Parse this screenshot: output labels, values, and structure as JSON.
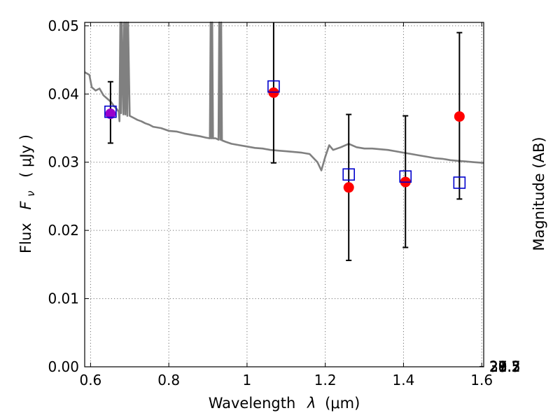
{
  "chart_data": {
    "type": "scatter",
    "xlabel_prefix": "Wavelength",
    "xlabel_symbol": "λ",
    "xlabel_unit": "(μm)",
    "ylabel_prefix": "Flux",
    "ylabel_symbol": "F",
    "ylabel_subscript": "ν",
    "ylabel_unit": "( μJy )",
    "y2label": "Magnitude (AB)",
    "xlim": [
      0.585,
      1.605
    ],
    "ylim": [
      0.0,
      0.0505
    ],
    "x_ticks": [
      {
        "value": 0.6,
        "label": "0.6"
      },
      {
        "value": 0.8,
        "label": "0.8"
      },
      {
        "value": 1.0,
        "label": "1"
      },
      {
        "value": 1.2,
        "label": "1.2"
      },
      {
        "value": 1.4,
        "label": "1.4"
      },
      {
        "value": 1.6,
        "label": "1.6"
      }
    ],
    "y_ticks": [
      {
        "value": 0.0,
        "label": "0.00"
      },
      {
        "value": 0.01,
        "label": "0.01"
      },
      {
        "value": 0.02,
        "label": "0.02"
      },
      {
        "value": 0.03,
        "label": "0.03"
      },
      {
        "value": 0.04,
        "label": "0.04"
      },
      {
        "value": 0.05,
        "label": "0.05"
      }
    ],
    "mag_ticks": [
      {
        "value": 27.2,
        "label": "27.2"
      },
      {
        "value": 27.3,
        "label": "27.3"
      },
      {
        "value": 27.5,
        "label": "27.5"
      },
      {
        "value": 27.7,
        "label": "27.7"
      },
      {
        "value": 28.0,
        "label": "28"
      },
      {
        "value": 28.2,
        "label": "28.2"
      },
      {
        "value": 28.5,
        "label": "28.5"
      },
      {
        "value": 29.0,
        "label": "29"
      },
      {
        "value": 29.5,
        "label": "29.5"
      },
      {
        "value": 30.0,
        "label": "30"
      },
      {
        "value": 31.0,
        "label": "31"
      }
    ],
    "grid": true,
    "colors": {
      "model": "#808080",
      "observed": "#ff0000",
      "model_flux": "#0000cc",
      "overlap": "#9900cc",
      "errorbar": "#000000"
    },
    "series": [
      {
        "name": "model_spectrum",
        "type": "line",
        "x": [
          0.585,
          0.597,
          0.603,
          0.613,
          0.623,
          0.633,
          0.643,
          0.653,
          0.66,
          0.667,
          0.672,
          0.674,
          0.676,
          0.678,
          0.68,
          0.684,
          0.686,
          0.689,
          0.691,
          0.694,
          0.696,
          0.7,
          0.71,
          0.72,
          0.73,
          0.74,
          0.75,
          0.76,
          0.78,
          0.8,
          0.82,
          0.84,
          0.86,
          0.88,
          0.895,
          0.905,
          0.907,
          0.909,
          0.911,
          0.913,
          0.92,
          0.927,
          0.929,
          0.932,
          0.934,
          0.936,
          0.945,
          0.96,
          0.98,
          1.0,
          1.02,
          1.04,
          1.06,
          1.08,
          1.1,
          1.12,
          1.14,
          1.16,
          1.18,
          1.19,
          1.2,
          1.21,
          1.22,
          1.24,
          1.26,
          1.28,
          1.3,
          1.32,
          1.34,
          1.36,
          1.38,
          1.4,
          1.42,
          1.44,
          1.46,
          1.48,
          1.5,
          1.52,
          1.54,
          1.56,
          1.58,
          1.605
        ],
        "y": [
          0.0432,
          0.0428,
          0.041,
          0.0405,
          0.0408,
          0.0398,
          0.0393,
          0.0388,
          0.0382,
          0.0378,
          0.0374,
          0.036,
          0.0505,
          0.0372,
          0.0505,
          0.037,
          0.0505,
          0.037,
          0.0505,
          0.0368,
          0.0505,
          0.0368,
          0.0365,
          0.0362,
          0.036,
          0.0357,
          0.0355,
          0.0352,
          0.035,
          0.0346,
          0.0345,
          0.0342,
          0.034,
          0.0338,
          0.0336,
          0.0335,
          0.0505,
          0.0335,
          0.0505,
          0.0335,
          0.0335,
          0.0333,
          0.0505,
          0.0333,
          0.0505,
          0.0332,
          0.033,
          0.0327,
          0.0325,
          0.0323,
          0.0321,
          0.032,
          0.0318,
          0.0317,
          0.0316,
          0.0315,
          0.0314,
          0.0312,
          0.03,
          0.0288,
          0.0308,
          0.0325,
          0.0318,
          0.0322,
          0.0327,
          0.0322,
          0.032,
          0.032,
          0.0319,
          0.0318,
          0.0316,
          0.0314,
          0.0312,
          0.031,
          0.0308,
          0.0306,
          0.0305,
          0.0303,
          0.0302,
          0.0301,
          0.03,
          0.0299
        ]
      },
      {
        "name": "model_flux",
        "type": "scatter",
        "marker": "open-square",
        "x": [
          0.651,
          1.068,
          1.26,
          1.405,
          1.543
        ],
        "y": [
          0.0374,
          0.0411,
          0.0282,
          0.0279,
          0.027
        ]
      },
      {
        "name": "observed_flux",
        "type": "errorbar",
        "marker": "filled-circle",
        "x": [
          0.651,
          1.068,
          1.26,
          1.405,
          1.543
        ],
        "y": [
          0.0371,
          0.0402,
          0.0263,
          0.0271,
          0.0367
        ],
        "yerr_low": [
          0.0328,
          0.0299,
          0.0156,
          0.0175,
          0.0246
        ],
        "yerr_high": [
          0.0418,
          0.0505,
          0.037,
          0.0368,
          0.049
        ]
      }
    ]
  }
}
